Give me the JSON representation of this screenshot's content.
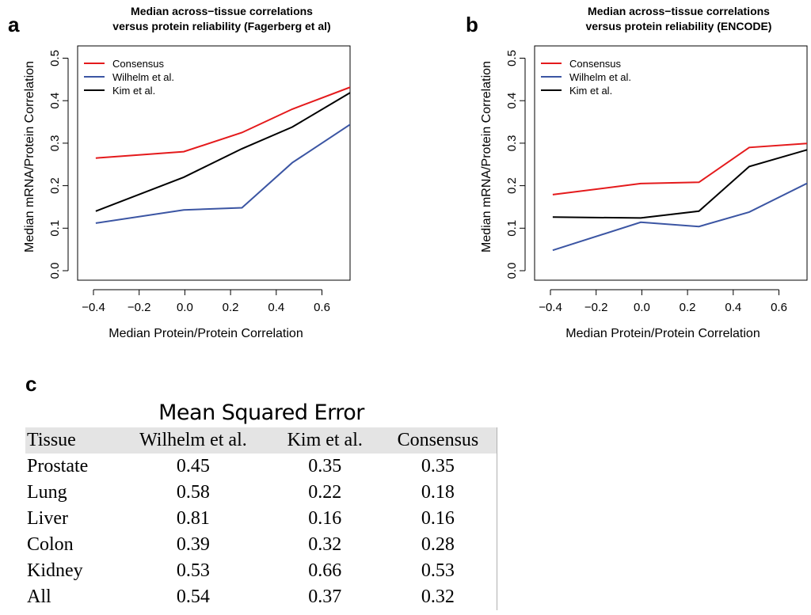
{
  "panels": {
    "a": "a",
    "b": "b",
    "c": "c"
  },
  "chart_data": [
    {
      "type": "line",
      "title": "Median across−tissue correlations\nversus protein reliability  (Fagerberg et al)",
      "xlabel": "Median Protein/Protein Correlation",
      "ylabel": "Median mRNA/Protein Correlation",
      "xlim": [
        -0.4,
        0.75
      ],
      "ylim": [
        0.0,
        0.5
      ],
      "xticks": [
        -0.4,
        -0.2,
        0.0,
        0.2,
        0.4,
        0.6
      ],
      "xtick_labels": [
        "−0.4",
        "−0.2",
        "0.0",
        "0.2",
        "0.4",
        "0.6"
      ],
      "yticks": [
        0.0,
        0.1,
        0.2,
        0.3,
        0.4,
        0.5
      ],
      "ytick_labels": [
        "0.0",
        "0.1",
        "0.2",
        "0.3",
        "0.4",
        "0.5"
      ],
      "legend_position": "top-left",
      "x": [
        -0.39,
        -0.005,
        0.25,
        0.47,
        0.74
      ],
      "series": [
        {
          "name": "Consensus",
          "color": "#e41a1c",
          "values": [
            0.265,
            0.28,
            0.325,
            0.38,
            0.435
          ]
        },
        {
          "name": "Wilhelm et al.",
          "color": "#3b55a3",
          "values": [
            0.112,
            0.143,
            0.148,
            0.254,
            0.35
          ]
        },
        {
          "name": "Kim et al.",
          "color": "#000000",
          "values": [
            0.14,
            0.22,
            0.287,
            0.338,
            0.424
          ]
        }
      ]
    },
    {
      "type": "line",
      "title": "Median across−tissue correlations\nversus protein reliability  (ENCODE)",
      "xlabel": "Median Protein/Protein Correlation",
      "ylabel": "Median mRNA/Protein Correlation",
      "xlim": [
        -0.4,
        0.75
      ],
      "ylim": [
        0.0,
        0.5
      ],
      "xticks": [
        -0.4,
        -0.2,
        0.0,
        0.2,
        0.4,
        0.6
      ],
      "xtick_labels": [
        "−0.4",
        "−0.2",
        "0.0",
        "0.2",
        "0.4",
        "0.6"
      ],
      "yticks": [
        0.0,
        0.1,
        0.2,
        0.3,
        0.4,
        0.5
      ],
      "ytick_labels": [
        "0.0",
        "0.1",
        "0.2",
        "0.3",
        "0.4",
        "0.5"
      ],
      "legend_position": "top-left",
      "x": [
        -0.39,
        -0.005,
        0.25,
        0.47,
        0.74
      ],
      "series": [
        {
          "name": "Consensus",
          "color": "#e41a1c",
          "values": [
            0.179,
            0.205,
            0.208,
            0.29,
            0.3
          ]
        },
        {
          "name": "Wilhelm et al.",
          "color": "#3b55a3",
          "values": [
            0.048,
            0.114,
            0.104,
            0.138,
            0.21
          ]
        },
        {
          "name": "Kim et al.",
          "color": "#000000",
          "values": [
            0.126,
            0.124,
            0.14,
            0.245,
            0.287
          ]
        }
      ]
    }
  ],
  "table": {
    "title": "Mean Squared Error",
    "headers": [
      "Tissue",
      "Wilhelm et al.",
      "Kim et al.",
      "Consensus"
    ],
    "rows": [
      [
        "Prostate",
        "0.45",
        "0.35",
        "0.35"
      ],
      [
        "Lung",
        "0.58",
        "0.22",
        "0.18"
      ],
      [
        "Liver",
        "0.81",
        "0.16",
        "0.16"
      ],
      [
        "Colon",
        "0.39",
        "0.32",
        "0.28"
      ],
      [
        "Kidney",
        "0.53",
        "0.66",
        "0.53"
      ],
      [
        "All",
        "0.54",
        "0.37",
        "0.32"
      ]
    ]
  }
}
